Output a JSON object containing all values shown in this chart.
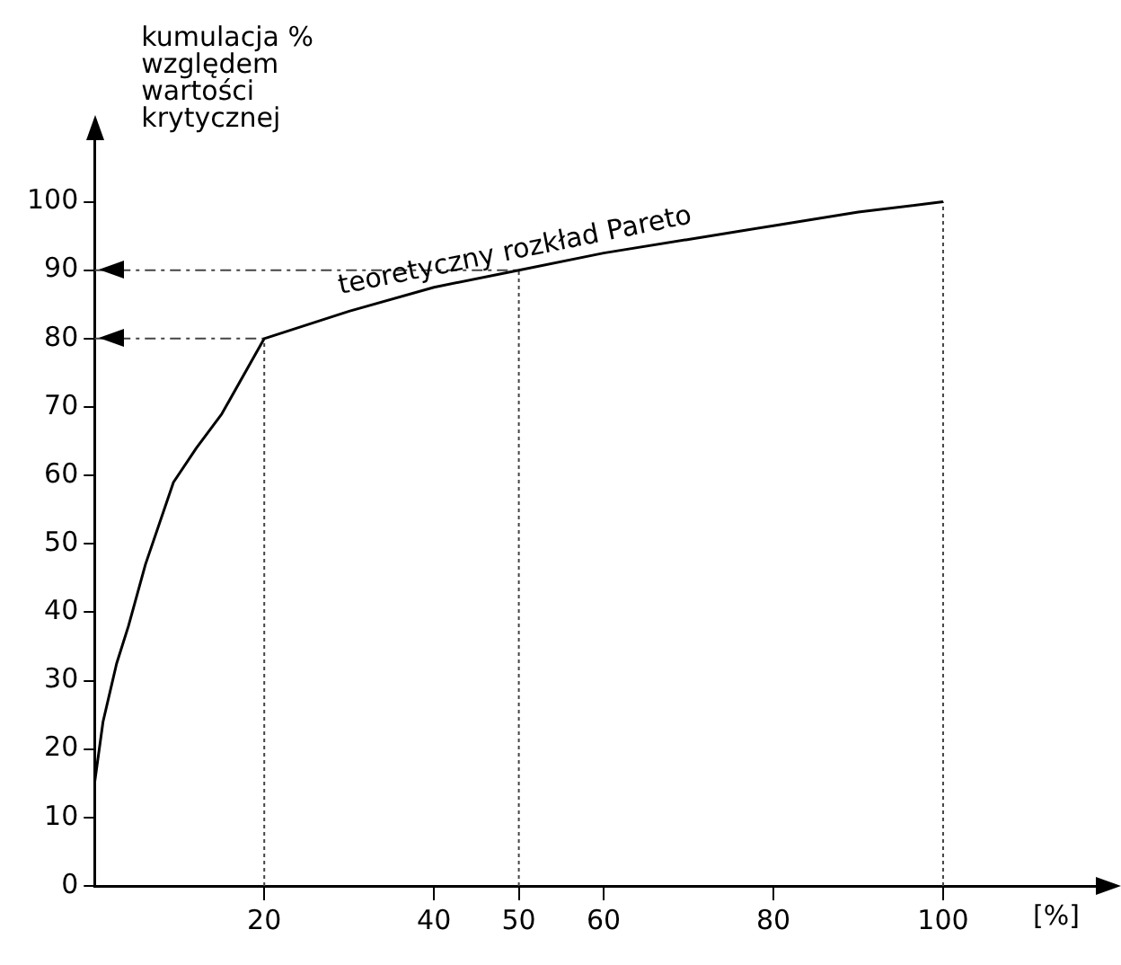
{
  "chart_data": {
    "type": "line",
    "xlabel": "[%]",
    "ylabel": "kumulacja %\nwzględem\nwartości\nkrytycznej",
    "xlim": [
      0,
      118
    ],
    "xticks": [
      20,
      40,
      50,
      60,
      80,
      100
    ],
    "ylim": [
      0,
      109
    ],
    "yticks": [
      0,
      10,
      20,
      30,
      40,
      50,
      60,
      70,
      80,
      90,
      100
    ],
    "grid": false,
    "legend": false,
    "marker": "none",
    "series": [
      {
        "name": "teoretyczny rozkład Pareto",
        "color": "#000000",
        "line_style": "solid",
        "x": [
          0,
          1,
          2.6,
          4,
          6,
          9.3,
          12,
          15,
          20,
          30,
          40,
          50,
          60,
          70,
          80,
          90,
          100
        ],
        "values": [
          15,
          24,
          32.5,
          38,
          47,
          59,
          64,
          69,
          80,
          84,
          87.5,
          90,
          92.5,
          94.5,
          96.5,
          98.5,
          100
        ]
      },
      {
        "color": "#444444",
        "line_style": "dashed",
        "x": [
          0,
          20
        ],
        "values": [
          80,
          80
        ]
      },
      {
        "color": "#444444",
        "line_style": "dashed",
        "x": [
          0,
          50
        ],
        "values": [
          90,
          90
        ]
      },
      {
        "color": "#444444",
        "line_style": "dotted",
        "x": [
          20,
          20
        ],
        "values": [
          0,
          80
        ]
      },
      {
        "color": "#444444",
        "line_style": "dotted",
        "x": [
          50,
          50
        ],
        "values": [
          0,
          90
        ]
      },
      {
        "color": "#444444",
        "line_style": "dotted",
        "x": [
          100,
          100
        ],
        "values": [
          0,
          100
        ]
      }
    ]
  }
}
